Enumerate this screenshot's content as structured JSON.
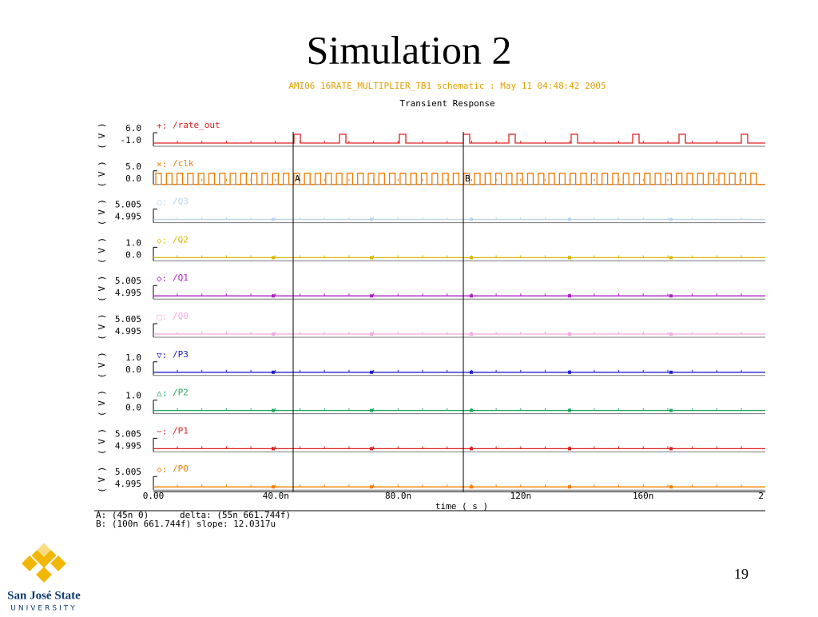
{
  "slide": {
    "title": "Simulation 2",
    "page_number": "19"
  },
  "plot": {
    "header": "AMI06 16RATE_MULTIPLIER_TB1 schematic : May 11 04:48:42 2005",
    "subtitle": "Transient Response",
    "unit": "( V )",
    "traces": [
      {
        "marker": "+:",
        "name": "/rate_out",
        "color": "#e02020",
        "top": "6.0",
        "bottom": "-1.0"
      },
      {
        "marker": "×:",
        "name": "/clk",
        "color": "#f07800",
        "top": "5.0",
        "bottom": "0.0"
      },
      {
        "marker": "○:",
        "name": "/Q3",
        "color": "#b8d4f0",
        "top": "5.005",
        "bottom": "4.995"
      },
      {
        "marker": "◇:",
        "name": "/Q2",
        "color": "#d8b800",
        "top": "1.0",
        "bottom": "0.0"
      },
      {
        "marker": "◇:",
        "name": "/Q1",
        "color": "#b020c8",
        "top": "5.005",
        "bottom": "4.995"
      },
      {
        "marker": "□:",
        "name": "/Q0",
        "color": "#f0a8e0",
        "top": "5.005",
        "bottom": "4.995"
      },
      {
        "marker": "▽:",
        "name": "/P3",
        "color": "#2020d0",
        "top": "1.0",
        "bottom": "0.0"
      },
      {
        "marker": "△:",
        "name": "/P2",
        "color": "#20a860",
        "top": "1.0",
        "bottom": "0.0"
      },
      {
        "marker": "−:",
        "name": "/P1",
        "color": "#e02020",
        "top": "5.005",
        "bottom": "4.995"
      },
      {
        "marker": "◇:",
        "name": "/P0",
        "color": "#f08000",
        "top": "5.005",
        "bottom": "4.995"
      }
    ],
    "x_ticks": [
      "0.00",
      "40.0n",
      "80.0n",
      "120n",
      "160n",
      "2"
    ],
    "x_label": "time ( s )",
    "cursors": [
      "A",
      "B"
    ],
    "readout": [
      "A: (45n 0)",
      "delta: (55n 661.744f)",
      "B: (100n 661.744f) slope: 12.0317u"
    ]
  },
  "logo": {
    "line1": "San José State",
    "line2": "UNIVERSITY"
  }
}
